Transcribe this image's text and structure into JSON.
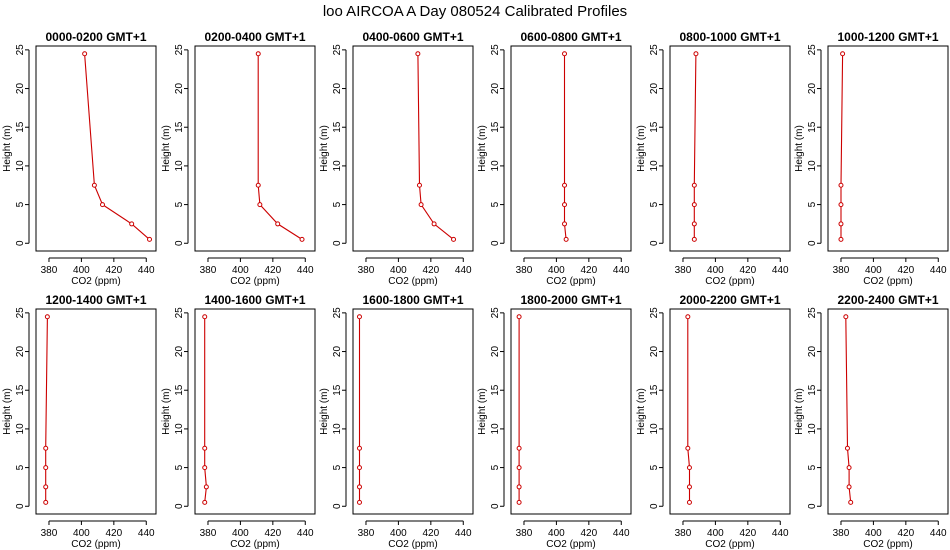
{
  "title": "loo AIRCOA A  Day 080524  Calibrated Profiles",
  "style": {
    "series_color": "#cc0000"
  },
  "chart_data": [
    {
      "type": "line",
      "title": "0000-0200 GMT+1",
      "xlabel": "CO2 (ppm)",
      "ylabel": "Height (m)",
      "xlim": [
        372,
        446
      ],
      "ylim": [
        -1,
        25.5
      ],
      "xticks": [
        380,
        400,
        420,
        440
      ],
      "yticks": [
        0,
        5,
        10,
        15,
        20,
        25
      ],
      "x": [
        402,
        408,
        413,
        431,
        442
      ],
      "y": [
        24.5,
        7.5,
        5,
        2.5,
        0.5
      ]
    },
    {
      "type": "line",
      "title": "0200-0400 GMT+1",
      "xlabel": "CO2 (ppm)",
      "ylabel": "Height (m)",
      "xlim": [
        372,
        446
      ],
      "ylim": [
        -1,
        25.5
      ],
      "xticks": [
        380,
        400,
        420,
        440
      ],
      "yticks": [
        0,
        5,
        10,
        15,
        20,
        25
      ],
      "x": [
        411,
        411,
        412,
        423,
        438
      ],
      "y": [
        24.5,
        7.5,
        5,
        2.5,
        0.5
      ]
    },
    {
      "type": "line",
      "title": "0400-0600 GMT+1",
      "xlabel": "CO2 (ppm)",
      "ylabel": "Height (m)",
      "xlim": [
        372,
        446
      ],
      "ylim": [
        -1,
        25.5
      ],
      "xticks": [
        380,
        400,
        420,
        440
      ],
      "yticks": [
        0,
        5,
        10,
        15,
        20,
        25
      ],
      "x": [
        412,
        413,
        414,
        422,
        434
      ],
      "y": [
        24.5,
        7.5,
        5,
        2.5,
        0.5
      ]
    },
    {
      "type": "line",
      "title": "0600-0800 GMT+1",
      "xlabel": "CO2 (ppm)",
      "ylabel": "Height (m)",
      "xlim": [
        372,
        446
      ],
      "ylim": [
        -1,
        25.5
      ],
      "xticks": [
        380,
        400,
        420,
        440
      ],
      "yticks": [
        0,
        5,
        10,
        15,
        20,
        25
      ],
      "x": [
        405,
        405,
        405,
        405,
        406
      ],
      "y": [
        24.5,
        7.5,
        5,
        2.5,
        0.5
      ]
    },
    {
      "type": "line",
      "title": "0800-1000 GMT+1",
      "xlabel": "CO2 (ppm)",
      "ylabel": "Height (m)",
      "xlim": [
        372,
        446
      ],
      "ylim": [
        -1,
        25.5
      ],
      "xticks": [
        380,
        400,
        420,
        440
      ],
      "yticks": [
        0,
        5,
        10,
        15,
        20,
        25
      ],
      "x": [
        388,
        387,
        387,
        387,
        387
      ],
      "y": [
        24.5,
        7.5,
        5,
        2.5,
        0.5
      ]
    },
    {
      "type": "line",
      "title": "1000-1200 GMT+1",
      "xlabel": "CO2 (ppm)",
      "ylabel": "Height (m)",
      "xlim": [
        372,
        446
      ],
      "ylim": [
        -1,
        25.5
      ],
      "xticks": [
        380,
        400,
        420,
        440
      ],
      "yticks": [
        0,
        5,
        10,
        15,
        20,
        25
      ],
      "x": [
        381,
        380,
        380,
        380,
        380
      ],
      "y": [
        24.5,
        7.5,
        5,
        2.5,
        0.5
      ]
    },
    {
      "type": "line",
      "title": "1200-1400 GMT+1",
      "xlabel": "CO2 (ppm)",
      "ylabel": "Height (m)",
      "xlim": [
        372,
        446
      ],
      "ylim": [
        -1,
        25.5
      ],
      "xticks": [
        380,
        400,
        420,
        440
      ],
      "yticks": [
        0,
        5,
        10,
        15,
        20,
        25
      ],
      "x": [
        379,
        378,
        378,
        378,
        378
      ],
      "y": [
        24.5,
        7.5,
        5,
        2.5,
        0.5
      ]
    },
    {
      "type": "line",
      "title": "1400-1600 GMT+1",
      "xlabel": "CO2 (ppm)",
      "ylabel": "Height (m)",
      "xlim": [
        372,
        446
      ],
      "ylim": [
        -1,
        25.5
      ],
      "xticks": [
        380,
        400,
        420,
        440
      ],
      "yticks": [
        0,
        5,
        10,
        15,
        20,
        25
      ],
      "x": [
        378,
        378,
        378,
        379,
        378
      ],
      "y": [
        24.5,
        7.5,
        5,
        2.5,
        0.5
      ]
    },
    {
      "type": "line",
      "title": "1600-1800 GMT+1",
      "xlabel": "CO2 (ppm)",
      "ylabel": "Height (m)",
      "xlim": [
        372,
        446
      ],
      "ylim": [
        -1,
        25.5
      ],
      "xticks": [
        380,
        400,
        420,
        440
      ],
      "yticks": [
        0,
        5,
        10,
        15,
        20,
        25
      ],
      "x": [
        376,
        376,
        376,
        376,
        376
      ],
      "y": [
        24.5,
        7.5,
        5,
        2.5,
        0.5
      ]
    },
    {
      "type": "line",
      "title": "1800-2000 GMT+1",
      "xlabel": "CO2 (ppm)",
      "ylabel": "Height (m)",
      "xlim": [
        372,
        446
      ],
      "ylim": [
        -1,
        25.5
      ],
      "xticks": [
        380,
        400,
        420,
        440
      ],
      "yticks": [
        0,
        5,
        10,
        15,
        20,
        25
      ],
      "x": [
        377,
        377,
        377,
        377,
        377
      ],
      "y": [
        24.5,
        7.5,
        5,
        2.5,
        0.5
      ]
    },
    {
      "type": "line",
      "title": "2000-2200 GMT+1",
      "xlabel": "CO2 (ppm)",
      "ylabel": "Height (m)",
      "xlim": [
        372,
        446
      ],
      "ylim": [
        -1,
        25.5
      ],
      "xticks": [
        380,
        400,
        420,
        440
      ],
      "yticks": [
        0,
        5,
        10,
        15,
        20,
        25
      ],
      "x": [
        383,
        383,
        384,
        384,
        384
      ],
      "y": [
        24.5,
        7.5,
        5,
        2.5,
        0.5
      ]
    },
    {
      "type": "line",
      "title": "2200-2400 GMT+1",
      "xlabel": "CO2 (ppm)",
      "ylabel": "Height (m)",
      "xlim": [
        372,
        446
      ],
      "ylim": [
        -1,
        25.5
      ],
      "xticks": [
        380,
        400,
        420,
        440
      ],
      "yticks": [
        0,
        5,
        10,
        15,
        20,
        25
      ],
      "x": [
        383,
        384,
        385,
        385,
        386
      ],
      "y": [
        24.5,
        7.5,
        5,
        2.5,
        0.5
      ]
    }
  ]
}
